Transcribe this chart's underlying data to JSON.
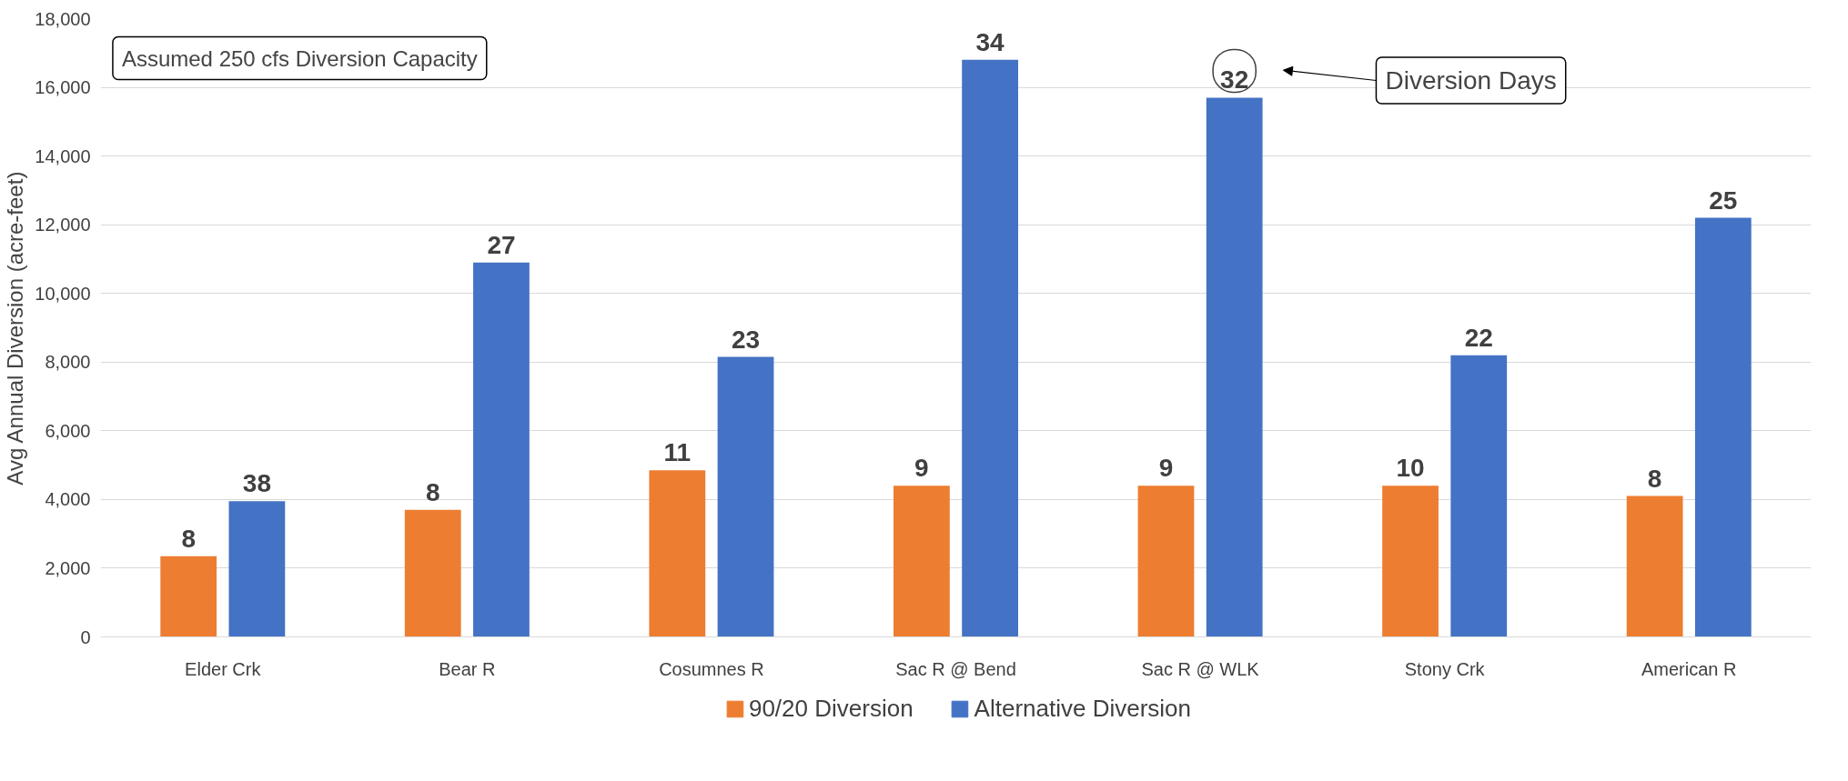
{
  "chart_data": {
    "type": "bar",
    "ylabel": "Avg Annual Diversion (acre-feet)",
    "categories": [
      "Elder Crk",
      "Bear R",
      "Cosumnes R",
      "Sac R @ Bend",
      "Sac R @ WLK",
      "Stony Crk",
      "American R"
    ],
    "series": [
      {
        "name": "90/20 Diversion",
        "color": "#ed7d31",
        "values": [
          2350,
          3700,
          4850,
          4400,
          4400,
          4400,
          4100
        ]
      },
      {
        "name": "Alternative Diversion",
        "color": "#4472c4",
        "values": [
          3950,
          10900,
          8150,
          16800,
          15700,
          8200,
          12200
        ]
      }
    ],
    "ylim": [
      0,
      18000
    ],
    "yticks": [
      {
        "value": 0,
        "label": "0"
      },
      {
        "value": 2000,
        "label": "2,000"
      },
      {
        "value": 4000,
        "label": "4,000"
      },
      {
        "value": 6000,
        "label": "6,000"
      },
      {
        "value": 8000,
        "label": "8,000"
      },
      {
        "value": 10000,
        "label": "10,000"
      },
      {
        "value": 12000,
        "label": "12,000"
      },
      {
        "value": 14000,
        "label": "14,000"
      },
      {
        "value": 16000,
        "label": "16,000"
      },
      {
        "value": 18000,
        "label": "18,000"
      }
    ],
    "grid": "y",
    "legend": "bottom",
    "annotations": [
      "Assumed 250 cfs Diversion Capacity",
      "8",
      "38",
      "8",
      "27",
      "11",
      "23",
      "9",
      "34",
      "9",
      "32",
      "10",
      "22",
      "8",
      "25",
      "Diversion Days"
    ]
  }
}
